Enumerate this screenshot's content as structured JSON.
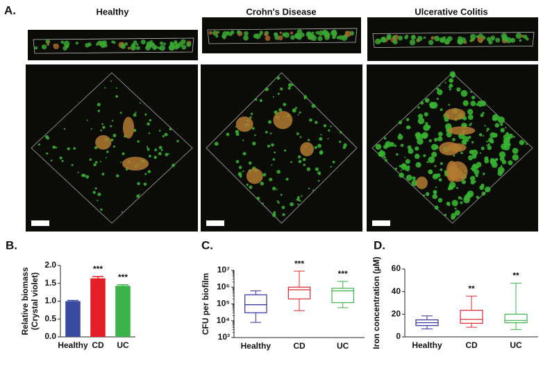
{
  "figure": {
    "panel_label": "A.",
    "column_titles": [
      "Healthy",
      "Crohn's Disease",
      "Ulcerative Colitis"
    ]
  },
  "chart_data": [
    {
      "type": "bar",
      "panel_label": "B.",
      "y_label": [
        "Relative biomass",
        "(Crystal violet)"
      ],
      "categories": [
        "Healthy",
        "CD",
        "UC"
      ],
      "values": [
        1.0,
        1.64,
        1.43
      ],
      "errors": [
        0.02,
        0.05,
        0.03
      ],
      "colors": [
        "#3a4a9f",
        "#e41e26",
        "#3bb34a"
      ],
      "significance": [
        null,
        "***",
        "***"
      ],
      "ylim": [
        0,
        2
      ],
      "yticks": [
        {
          "value": 0,
          "label": "0.0"
        },
        0.5,
        {
          "value": 1,
          "label": "1.0"
        },
        1.5,
        {
          "value": 2,
          "label": "2.0"
        }
      ]
    },
    {
      "type": "box",
      "panel_label": "C.",
      "y_label": [
        "CFU per biofilm"
      ],
      "log_y": true,
      "categories": [
        "Healthy",
        "CD",
        "UC"
      ],
      "colors": [
        "#2b2b9a",
        "#d9262b",
        "#3bb34a"
      ],
      "boxes": [
        {
          "min": 8000,
          "q1": 30000,
          "median": 90000,
          "q3": 350000,
          "max": 600000
        },
        {
          "min": 40000,
          "q1": 200000,
          "median": 700000,
          "q3": 1000000,
          "max": 9000000
        },
        {
          "min": 60000,
          "q1": 120000,
          "median": 600000,
          "q3": 850000,
          "max": 2200000
        }
      ],
      "significance": [
        null,
        "***",
        "***"
      ],
      "ylim": [
        1000,
        10000000
      ],
      "yticks": [
        {
          "value": 1000,
          "label": "10³"
        },
        {
          "value": 10000,
          "label": "10⁴"
        },
        {
          "value": 100000,
          "label": "10⁵"
        },
        {
          "value": 1000000,
          "label": "10⁶"
        },
        {
          "value": 10000000,
          "label": "10⁷"
        }
      ]
    },
    {
      "type": "box",
      "panel_label": "D.",
      "y_label": [
        "Iron concentration (µM)"
      ],
      "log_y": false,
      "categories": [
        "Healthy",
        "CD",
        "UC"
      ],
      "colors": [
        "#2b2b9a",
        "#d9262b",
        "#3bb34a"
      ],
      "boxes": [
        {
          "min": 7,
          "q1": 10,
          "median": 12.5,
          "q3": 15,
          "max": 18.5
        },
        {
          "min": 8.5,
          "q1": 12,
          "median": 15.5,
          "q3": 23.5,
          "max": 36
        },
        {
          "min": 6.5,
          "q1": 12.5,
          "median": 14.5,
          "q3": 20,
          "max": 47.5
        }
      ],
      "significance": [
        null,
        "**",
        "**"
      ],
      "ylim": [
        0,
        60
      ],
      "yticks": [
        0,
        20,
        40,
        60
      ]
    }
  ]
}
